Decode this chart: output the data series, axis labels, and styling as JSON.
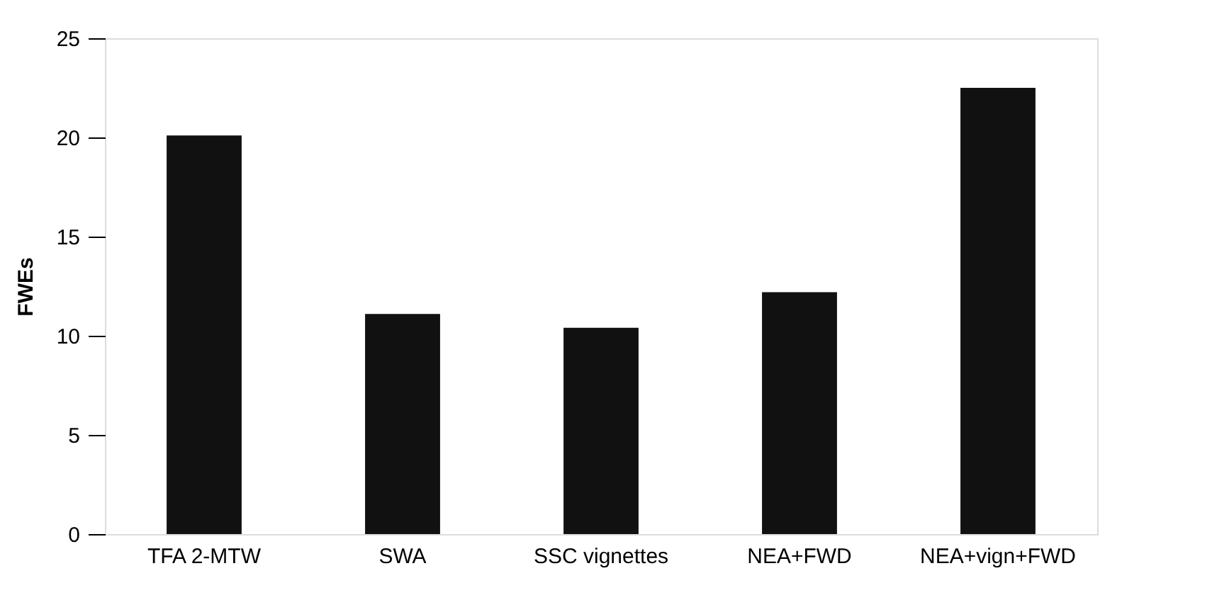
{
  "chart_data": {
    "type": "bar",
    "ylabel": "FWEs",
    "categories": [
      "TFA 2-MTW",
      "SWA",
      "SSC vignettes",
      "NEA+FWD",
      "NEA+vign+FWD"
    ],
    "values": [
      20.1,
      11.1,
      10.4,
      12.2,
      22.5
    ],
    "color": "#111111",
    "ylim": [
      0,
      25
    ],
    "yticks": [
      0,
      5,
      10,
      15,
      20,
      25
    ],
    "grid": false
  }
}
